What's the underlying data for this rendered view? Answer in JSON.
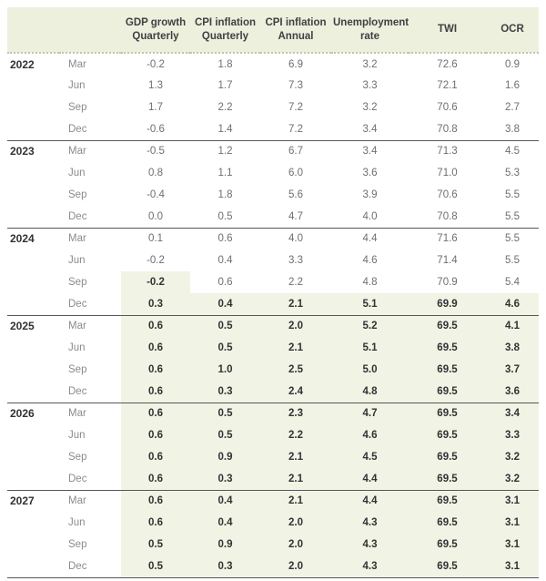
{
  "colors": {
    "header_bg": "#edf0dd",
    "forecast_bg": "#f1f3e4",
    "rule_color": "#54575b",
    "dot_color": "#c2c6ae",
    "text_dark": "#323236",
    "text_gray": "#6e6e73",
    "text_month": "#8b8b90",
    "header_text": "#404043"
  },
  "table": {
    "columns": [
      {
        "key": "gdp-growth-quarterly",
        "label": "GDP growth\nQuarterly"
      },
      {
        "key": "cpi-inflation-quarterly",
        "label": "CPI inflation\nQuarterly"
      },
      {
        "key": "cpi-inflation-annual",
        "label": "CPI inflation\nAnnual"
      },
      {
        "key": "unemployment-rate",
        "label": "Unemployment\nrate"
      },
      {
        "key": "twi",
        "label": "TWI"
      },
      {
        "key": "ocr",
        "label": "OCR"
      }
    ],
    "groups": [
      {
        "year": "2022",
        "rows": [
          {
            "month": "Mar",
            "values": [
              "-0.2",
              "1.8",
              "6.9",
              "3.2",
              "72.6",
              "0.9"
            ],
            "forecast": [
              false,
              false,
              false,
              false,
              false,
              false
            ]
          },
          {
            "month": "Jun",
            "values": [
              "1.3",
              "1.7",
              "7.3",
              "3.3",
              "72.1",
              "1.6"
            ],
            "forecast": [
              false,
              false,
              false,
              false,
              false,
              false
            ]
          },
          {
            "month": "Sep",
            "values": [
              "1.7",
              "2.2",
              "7.2",
              "3.2",
              "70.6",
              "2.7"
            ],
            "forecast": [
              false,
              false,
              false,
              false,
              false,
              false
            ]
          },
          {
            "month": "Dec",
            "values": [
              "-0.6",
              "1.4",
              "7.2",
              "3.4",
              "70.8",
              "3.8"
            ],
            "forecast": [
              false,
              false,
              false,
              false,
              false,
              false
            ]
          }
        ]
      },
      {
        "year": "2023",
        "rows": [
          {
            "month": "Mar",
            "values": [
              "-0.5",
              "1.2",
              "6.7",
              "3.4",
              "71.3",
              "4.5"
            ],
            "forecast": [
              false,
              false,
              false,
              false,
              false,
              false
            ]
          },
          {
            "month": "Jun",
            "values": [
              "0.8",
              "1.1",
              "6.0",
              "3.6",
              "71.0",
              "5.3"
            ],
            "forecast": [
              false,
              false,
              false,
              false,
              false,
              false
            ]
          },
          {
            "month": "Sep",
            "values": [
              "-0.4",
              "1.8",
              "5.6",
              "3.9",
              "70.6",
              "5.5"
            ],
            "forecast": [
              false,
              false,
              false,
              false,
              false,
              false
            ]
          },
          {
            "month": "Dec",
            "values": [
              "0.0",
              "0.5",
              "4.7",
              "4.0",
              "70.8",
              "5.5"
            ],
            "forecast": [
              false,
              false,
              false,
              false,
              false,
              false
            ]
          }
        ]
      },
      {
        "year": "2024",
        "rows": [
          {
            "month": "Mar",
            "values": [
              "0.1",
              "0.6",
              "4.0",
              "4.4",
              "71.6",
              "5.5"
            ],
            "forecast": [
              false,
              false,
              false,
              false,
              false,
              false
            ]
          },
          {
            "month": "Jun",
            "values": [
              "-0.2",
              "0.4",
              "3.3",
              "4.6",
              "71.4",
              "5.5"
            ],
            "forecast": [
              false,
              false,
              false,
              false,
              false,
              false
            ]
          },
          {
            "month": "Sep",
            "values": [
              "-0.2",
              "0.6",
              "2.2",
              "4.8",
              "70.9",
              "5.4"
            ],
            "forecast": [
              true,
              false,
              false,
              false,
              false,
              false
            ]
          },
          {
            "month": "Dec",
            "values": [
              "0.3",
              "0.4",
              "2.1",
              "5.1",
              "69.9",
              "4.6"
            ],
            "forecast": [
              true,
              true,
              true,
              true,
              true,
              true
            ]
          }
        ]
      },
      {
        "year": "2025",
        "rows": [
          {
            "month": "Mar",
            "values": [
              "0.6",
              "0.5",
              "2.0",
              "5.2",
              "69.5",
              "4.1"
            ],
            "forecast": [
              true,
              true,
              true,
              true,
              true,
              true
            ]
          },
          {
            "month": "Jun",
            "values": [
              "0.6",
              "0.5",
              "2.1",
              "5.1",
              "69.5",
              "3.8"
            ],
            "forecast": [
              true,
              true,
              true,
              true,
              true,
              true
            ]
          },
          {
            "month": "Sep",
            "values": [
              "0.6",
              "1.0",
              "2.5",
              "5.0",
              "69.5",
              "3.7"
            ],
            "forecast": [
              true,
              true,
              true,
              true,
              true,
              true
            ]
          },
          {
            "month": "Dec",
            "values": [
              "0.6",
              "0.3",
              "2.4",
              "4.8",
              "69.5",
              "3.6"
            ],
            "forecast": [
              true,
              true,
              true,
              true,
              true,
              true
            ]
          }
        ]
      },
      {
        "year": "2026",
        "rows": [
          {
            "month": "Mar",
            "values": [
              "0.6",
              "0.5",
              "2.3",
              "4.7",
              "69.5",
              "3.4"
            ],
            "forecast": [
              true,
              true,
              true,
              true,
              true,
              true
            ]
          },
          {
            "month": "Jun",
            "values": [
              "0.6",
              "0.5",
              "2.2",
              "4.6",
              "69.5",
              "3.3"
            ],
            "forecast": [
              true,
              true,
              true,
              true,
              true,
              true
            ]
          },
          {
            "month": "Sep",
            "values": [
              "0.6",
              "0.9",
              "2.1",
              "4.5",
              "69.5",
              "3.2"
            ],
            "forecast": [
              true,
              true,
              true,
              true,
              true,
              true
            ]
          },
          {
            "month": "Dec",
            "values": [
              "0.6",
              "0.3",
              "2.1",
              "4.4",
              "69.5",
              "3.2"
            ],
            "forecast": [
              true,
              true,
              true,
              true,
              true,
              true
            ]
          }
        ]
      },
      {
        "year": "2027",
        "rows": [
          {
            "month": "Mar",
            "values": [
              "0.6",
              "0.4",
              "2.1",
              "4.4",
              "69.5",
              "3.1"
            ],
            "forecast": [
              true,
              true,
              true,
              true,
              true,
              true
            ]
          },
          {
            "month": "Jun",
            "values": [
              "0.6",
              "0.4",
              "2.0",
              "4.3",
              "69.5",
              "3.1"
            ],
            "forecast": [
              true,
              true,
              true,
              true,
              true,
              true
            ]
          },
          {
            "month": "Sep",
            "values": [
              "0.5",
              "0.9",
              "2.0",
              "4.3",
              "69.5",
              "3.1"
            ],
            "forecast": [
              true,
              true,
              true,
              true,
              true,
              true
            ]
          },
          {
            "month": "Dec",
            "values": [
              "0.5",
              "0.3",
              "2.0",
              "4.3",
              "69.5",
              "3.1"
            ],
            "forecast": [
              true,
              true,
              true,
              true,
              true,
              true
            ]
          }
        ]
      }
    ]
  }
}
